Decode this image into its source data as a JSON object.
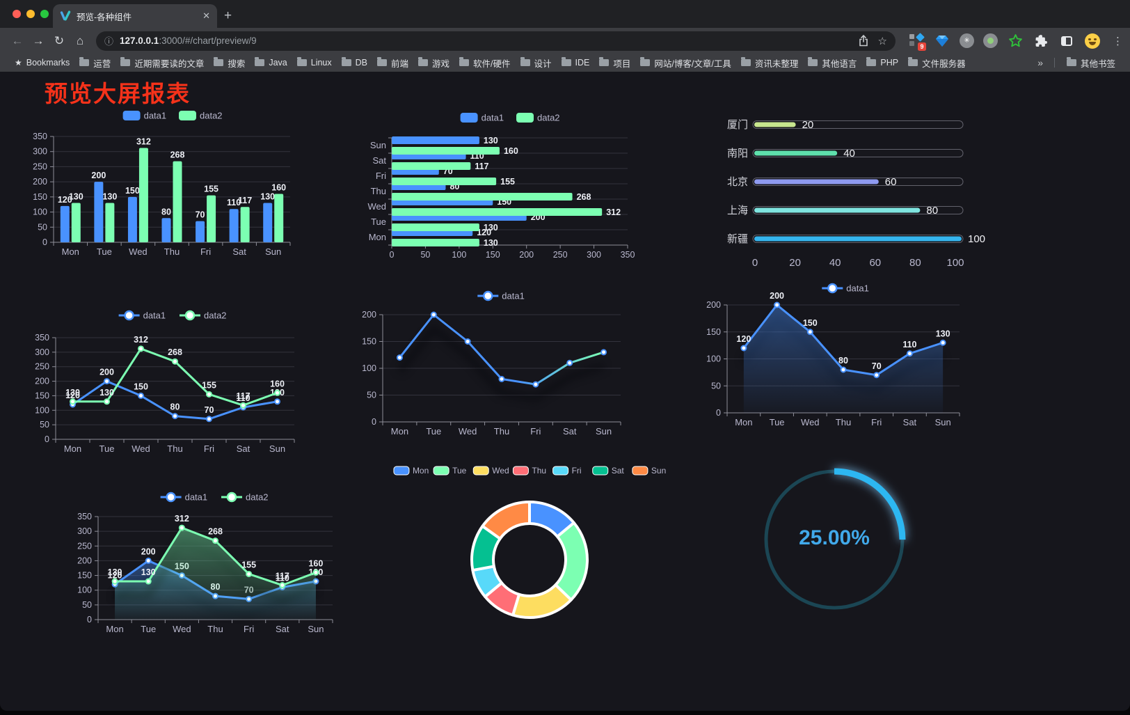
{
  "browser": {
    "tab": {
      "title": "预览-各种组件",
      "close_glyph": "✕",
      "new_tab_glyph": "+"
    },
    "address": {
      "host": "127.0.0.1",
      "rest": ":3000/#/chart/preview/9"
    },
    "icons": {
      "back": "←",
      "forward": "→",
      "reload": "↻",
      "home": "⌂",
      "info": "ⓘ",
      "star": "☆",
      "menu": "⋮",
      "asterisk": "✳",
      "overflow": "»"
    },
    "extension_badge": "9",
    "bookmarks": {
      "label": "Bookmarks",
      "folders": [
        "运营",
        "近期需要读的文章",
        "搜索",
        "Java",
        "Linux",
        "DB",
        "前端",
        "游戏",
        "软件/硬件",
        "设计",
        "IDE",
        "项目",
        "网站/博客/文章/工具",
        "资讯未整理",
        "其他语言",
        "PHP",
        "文件服务器"
      ],
      "overflow": "»",
      "other": "其他书签"
    }
  },
  "page": {
    "title": "预览大屏报表",
    "title_color": "#f5321a",
    "background": "#16161c",
    "theme": {
      "axis_text": "#b9b8ce",
      "axis_line": "#8f8f99",
      "split_line": "#33333d",
      "value_label": "#eef0f6"
    }
  },
  "chart_data": [
    {
      "id": "bar-vertical",
      "type": "bar",
      "legend_position": "top",
      "grid": true,
      "categories": [
        "Mon",
        "Tue",
        "Wed",
        "Thu",
        "Fri",
        "Sat",
        "Sun"
      ],
      "series": [
        {
          "name": "data1",
          "color": "#4992ff",
          "values": [
            120,
            200,
            150,
            80,
            70,
            110,
            130
          ]
        },
        {
          "name": "data2",
          "color": "#7cffb2",
          "values": [
            130,
            130,
            312,
            268,
            155,
            117,
            160
          ]
        }
      ],
      "ylim": [
        0,
        350
      ],
      "ytick": 50
    },
    {
      "id": "bar-horizontal",
      "type": "bar-horizontal",
      "legend_position": "top",
      "categories": [
        "Mon",
        "Tue",
        "Wed",
        "Thu",
        "Fri",
        "Sat",
        "Sun"
      ],
      "series": [
        {
          "name": "data1",
          "color": "#4992ff",
          "values": [
            120,
            200,
            150,
            80,
            70,
            110,
            130
          ]
        },
        {
          "name": "data2",
          "color": "#7cffb2",
          "values": [
            130,
            130,
            312,
            268,
            155,
            117,
            160
          ]
        }
      ],
      "xlim": [
        0,
        350
      ],
      "xtick": 50
    },
    {
      "id": "progress",
      "type": "progress",
      "categories": [
        "厦门",
        "南阳",
        "北京",
        "上海",
        "新疆"
      ],
      "values": [
        20,
        40,
        60,
        80,
        100
      ],
      "colors": [
        "#c8e68e",
        "#5ee0ac",
        "#8e9af0",
        "#7fe5e0",
        "#35b5ee"
      ],
      "xlim": [
        0,
        100
      ],
      "xticks": [
        0,
        20,
        40,
        60,
        80,
        100
      ]
    },
    {
      "id": "line-two",
      "type": "line",
      "legend_position": "top",
      "labels": true,
      "shadow": false,
      "categories": [
        "Mon",
        "Tue",
        "Wed",
        "Thu",
        "Fri",
        "Sat",
        "Sun"
      ],
      "series": [
        {
          "name": "data1",
          "color": "#4992ff",
          "values": [
            120,
            200,
            150,
            80,
            70,
            110,
            130
          ]
        },
        {
          "name": "data2",
          "color": "#7cffb2",
          "values": [
            130,
            130,
            312,
            268,
            155,
            117,
            160
          ]
        }
      ],
      "ylim": [
        0,
        350
      ],
      "ytick": 50
    },
    {
      "id": "line-gradient",
      "type": "line",
      "legend_position": "top",
      "labels": false,
      "shadow": true,
      "categories": [
        "Mon",
        "Tue",
        "Wed",
        "Thu",
        "Fri",
        "Sat",
        "Sun"
      ],
      "series": [
        {
          "name": "data1",
          "gradient": [
            "#4992ff",
            "#7cffb2"
          ],
          "values": [
            120,
            200,
            150,
            80,
            70,
            110,
            130
          ]
        }
      ],
      "ylim": [
        0,
        200
      ],
      "ytick": 50
    },
    {
      "id": "line-area",
      "type": "line",
      "legend_position": "top",
      "labels": true,
      "shadow": true,
      "categories": [
        "Mon",
        "Tue",
        "Wed",
        "Thu",
        "Fri",
        "Sat",
        "Sun"
      ],
      "series": [
        {
          "name": "data1",
          "color": "#4992ff",
          "area": true,
          "values": [
            120,
            200,
            150,
            80,
            70,
            110,
            130
          ]
        }
      ],
      "ylim": [
        0,
        200
      ],
      "ytick": 50
    },
    {
      "id": "area-two",
      "type": "line",
      "legend_position": "top",
      "labels": true,
      "shadow": true,
      "categories": [
        "Mon",
        "Tue",
        "Wed",
        "Thu",
        "Fri",
        "Sat",
        "Sun"
      ],
      "series": [
        {
          "name": "data1",
          "color": "#4992ff",
          "area": true,
          "values": [
            120,
            200,
            150,
            80,
            70,
            110,
            130
          ]
        },
        {
          "name": "data2",
          "color": "#7cffb2",
          "area": true,
          "values": [
            130,
            130,
            312,
            268,
            155,
            117,
            160
          ]
        }
      ],
      "ylim": [
        0,
        350
      ],
      "ytick": 50
    },
    {
      "id": "donut",
      "type": "pie",
      "legend_position": "top",
      "categories": [
        "Mon",
        "Tue",
        "Wed",
        "Thu",
        "Fri",
        "Sat",
        "Sun"
      ],
      "values": [
        120,
        200,
        150,
        80,
        70,
        110,
        130
      ],
      "colors": [
        "#4992ff",
        "#7cffb2",
        "#fddd60",
        "#ff6e76",
        "#58d9f9",
        "#05c091",
        "#ff8a45"
      ]
    },
    {
      "id": "gauge",
      "type": "gauge",
      "value": 25,
      "label": "25.00%",
      "color": "#2db7f1",
      "track_color": "#1b4654",
      "text_color": "#41a9ea"
    }
  ]
}
